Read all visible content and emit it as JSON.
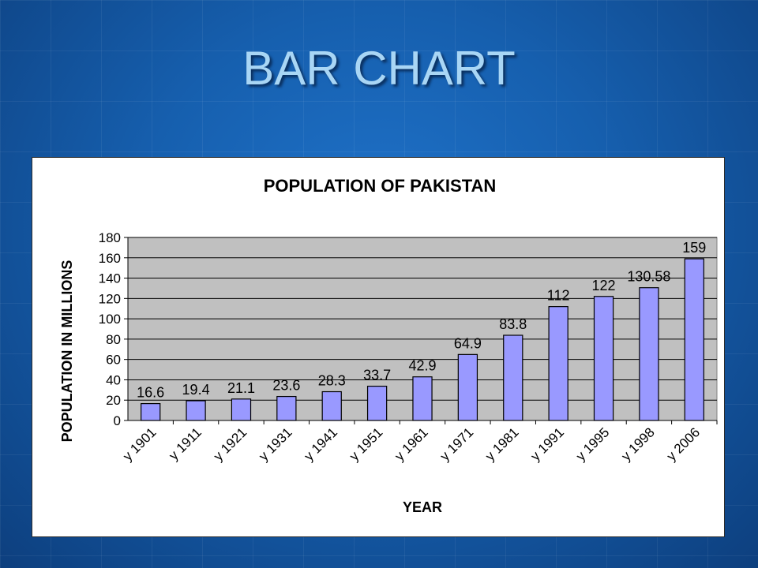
{
  "slide": {
    "title": "BAR CHART"
  },
  "chart_data": {
    "type": "bar",
    "title": "POPULATION OF PAKISTAN",
    "xlabel": "YEAR",
    "ylabel": "POPULATION IN MILLIONS",
    "categories": [
      "y 1901",
      "y 1911",
      "y 1921",
      "y 1931",
      "y 1941",
      "y 1951",
      "y 1961",
      "y 1971",
      "y 1981",
      "y 1991",
      "y 1995",
      "y 1998",
      "y 2006"
    ],
    "values": [
      16.6,
      19.4,
      21.1,
      23.6,
      28.3,
      33.7,
      42.9,
      64.9,
      83.8,
      112,
      122,
      130.58,
      159
    ],
    "data_labels": [
      "16.6",
      "19.4",
      "21.1",
      "23.6",
      "28.3",
      "33.7",
      "42.9",
      "64.9",
      "83.8",
      "112",
      "122",
      "130.58",
      "159"
    ],
    "y_ticks": [
      0,
      20,
      40,
      60,
      80,
      100,
      120,
      140,
      160,
      180
    ],
    "ylim": [
      0,
      180
    ],
    "grid": true,
    "legend": "none",
    "colors": {
      "bar": "#9999ff",
      "plot_bg": "#c0c0c0",
      "bar_stroke": "#000000"
    }
  }
}
